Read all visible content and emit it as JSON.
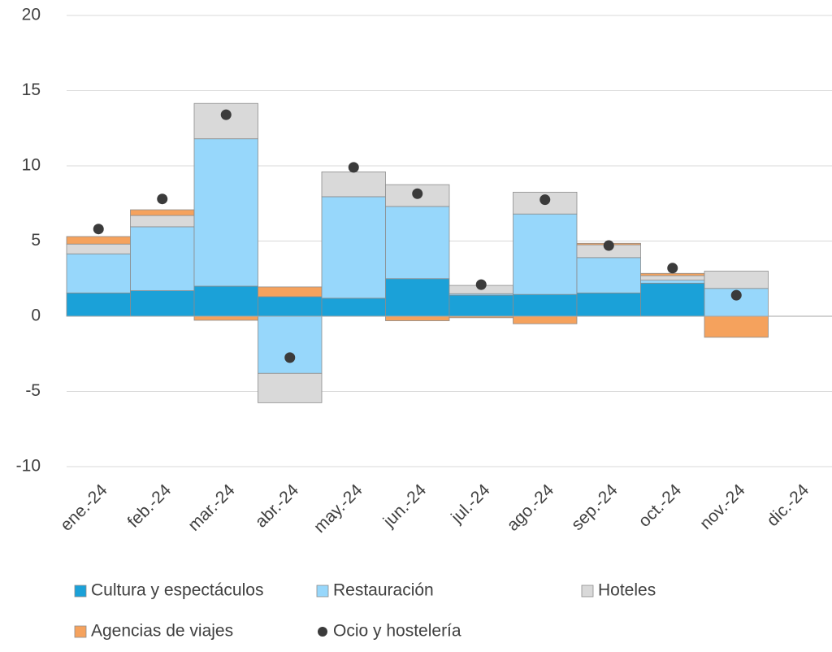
{
  "chart_data": {
    "type": "bar",
    "stacked": true,
    "categories": [
      "ene.-24",
      "feb.-24",
      "mar.-24",
      "abr.-24",
      "may.-24",
      "jun.-24",
      "jul.-24",
      "ago.-24",
      "sep.-24",
      "oct.-24",
      "nov.-24",
      "dic.-24"
    ],
    "series": [
      {
        "name": "Cultura y espectáculos",
        "color": "#1ba1d8",
        "values": [
          1.55,
          1.7,
          2.0,
          1.3,
          1.2,
          2.5,
          1.4,
          1.45,
          1.55,
          2.2,
          0,
          null
        ]
      },
      {
        "name": "Restauración",
        "color": "#97d7fb",
        "values": [
          2.6,
          4.25,
          9.8,
          -3.8,
          6.75,
          4.8,
          0.1,
          5.35,
          2.35,
          0.2,
          1.85,
          null
        ]
      },
      {
        "name": "Hoteles",
        "color": "#d9d9d9",
        "values": [
          0.65,
          0.75,
          2.35,
          -1.95,
          1.65,
          1.45,
          0.55,
          1.45,
          0.85,
          0.3,
          1.15,
          null
        ]
      },
      {
        "name": "Agencias de viajes",
        "color": "#f5a25d",
        "values": [
          0.5,
          0.38,
          -0.27,
          0.65,
          0,
          -0.3,
          -0.1,
          -0.5,
          0.1,
          0.15,
          -1.4,
          null
        ]
      },
      {
        "name": "Ocio y hostelería",
        "color": "#3b3b3b",
        "type": "scatter",
        "values": [
          5.8,
          7.8,
          13.4,
          -2.75,
          9.9,
          8.15,
          2.1,
          7.75,
          4.7,
          3.2,
          1.4,
          null
        ]
      }
    ],
    "ylim": [
      -10,
      20
    ],
    "yticks": [
      -10,
      -5,
      0,
      5,
      10,
      15,
      20
    ],
    "grid": true
  }
}
